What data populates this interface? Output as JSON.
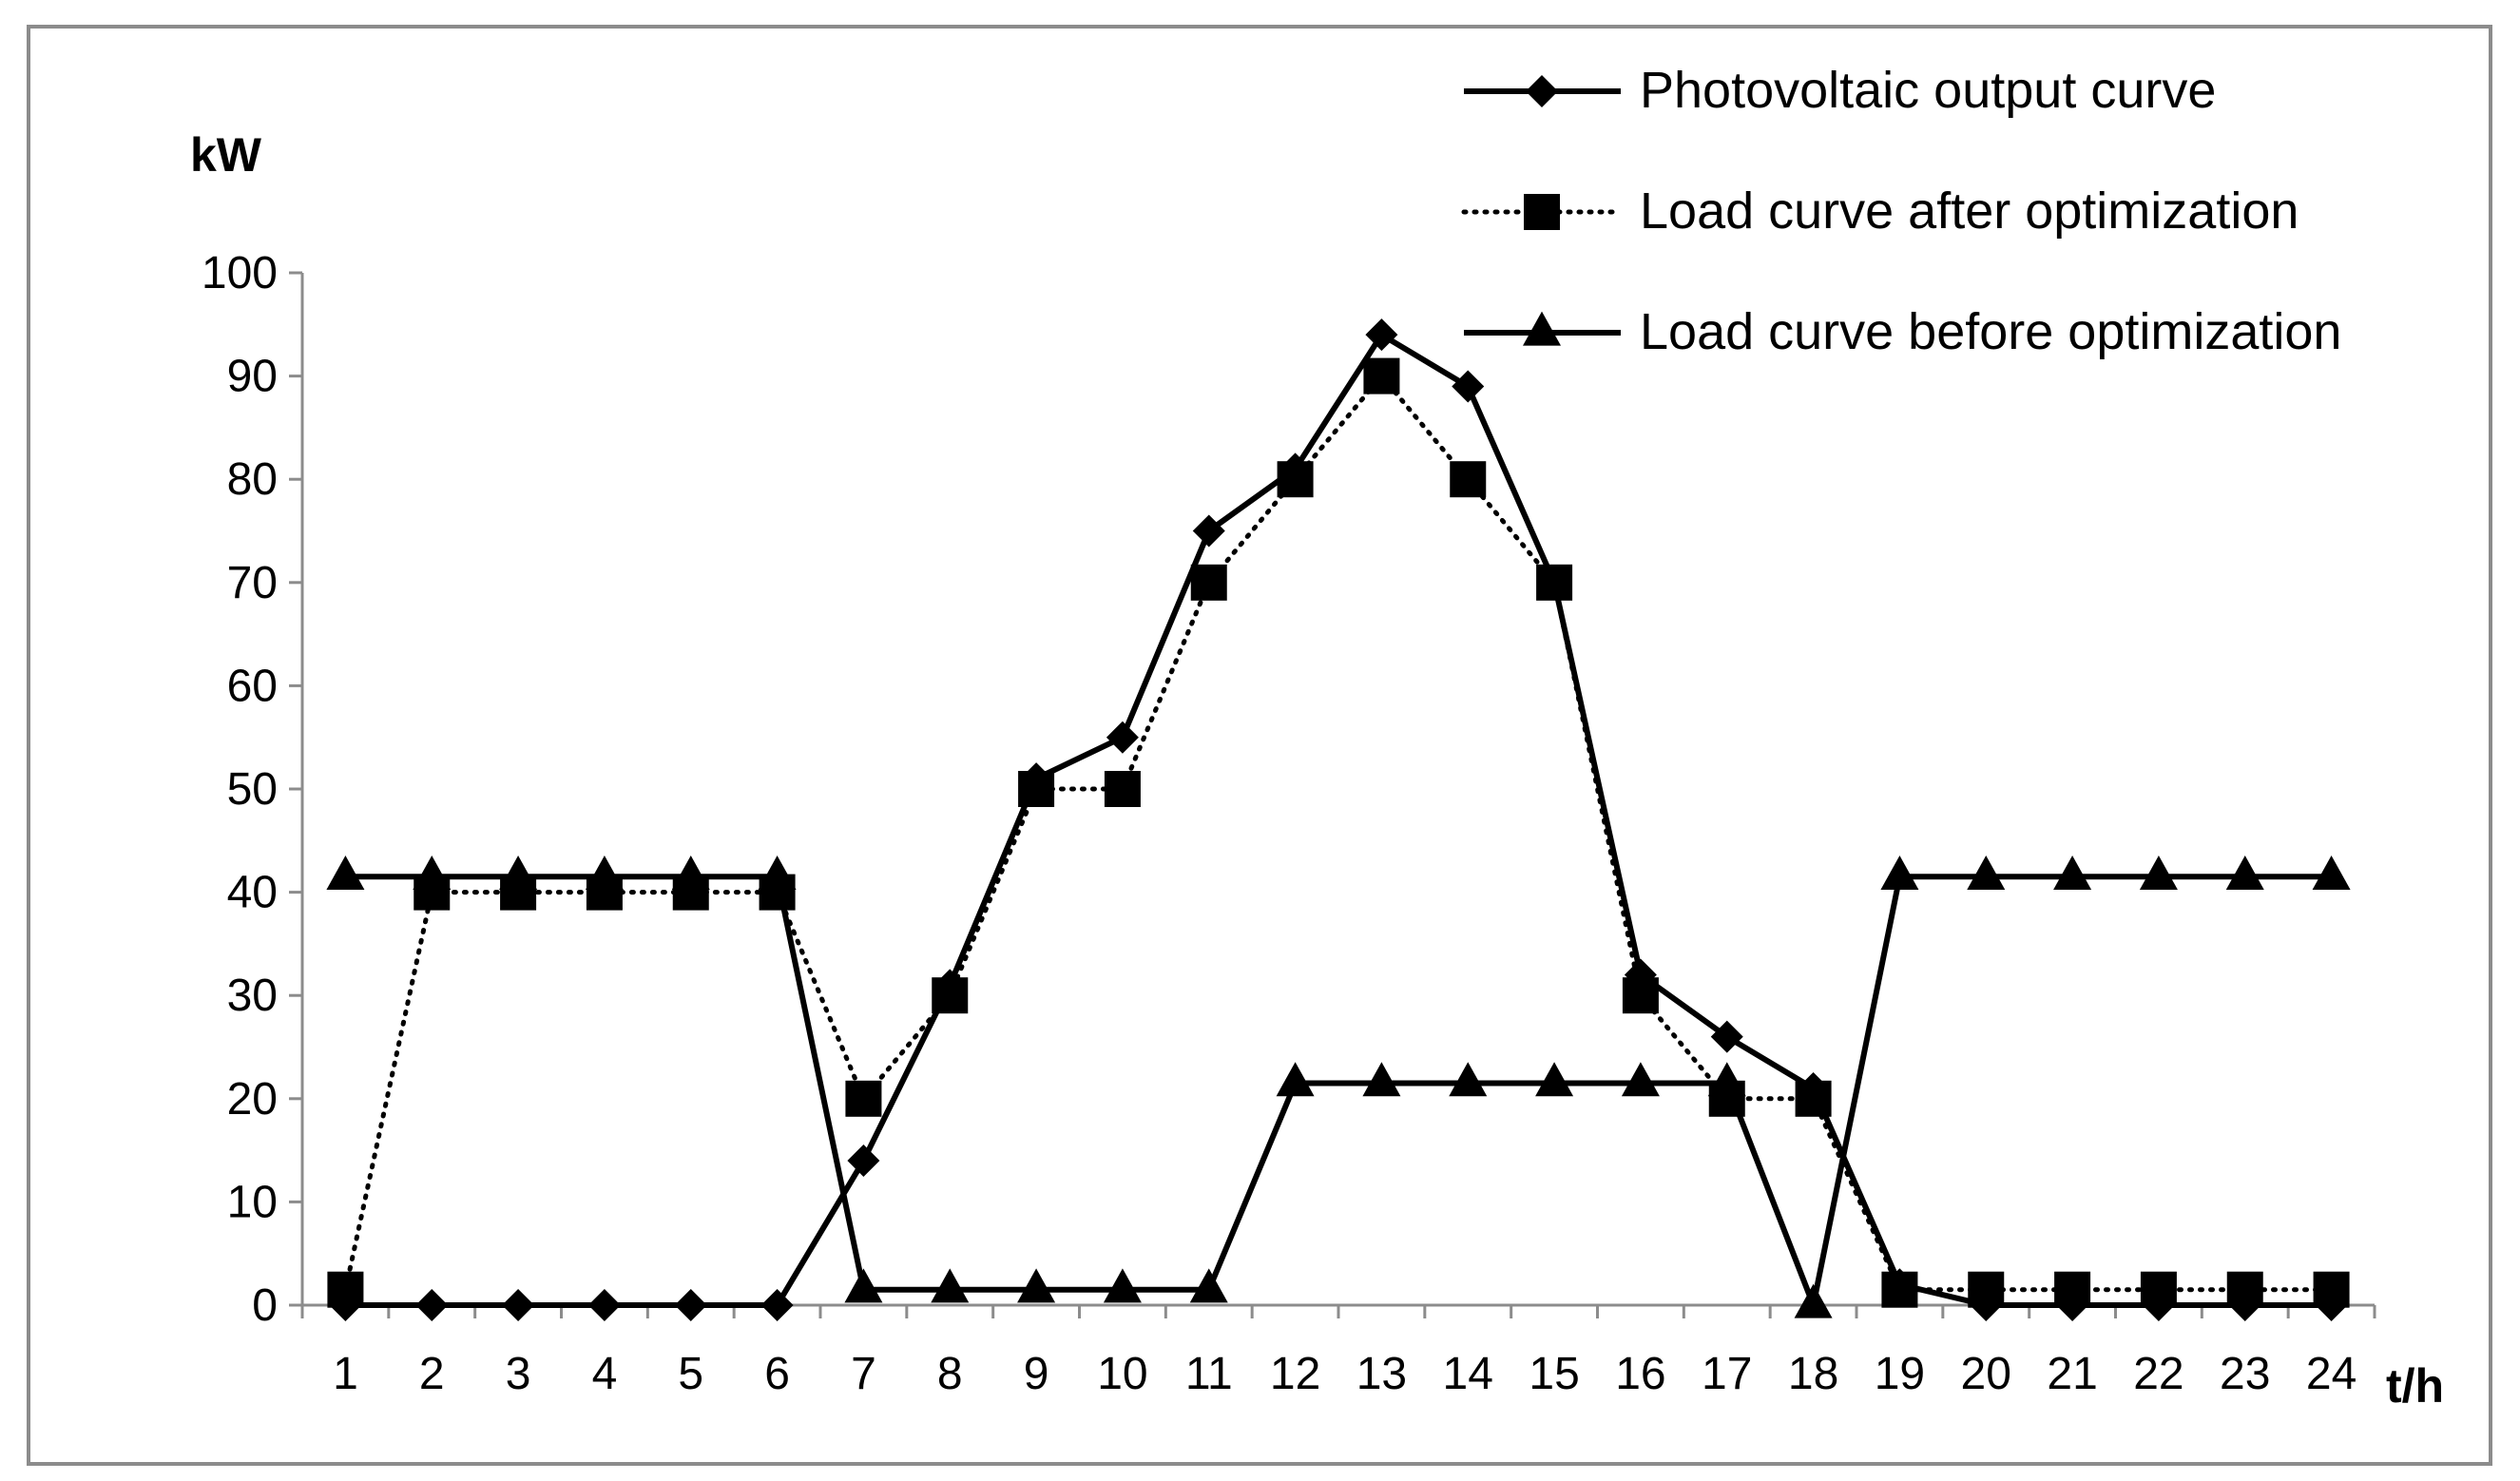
{
  "chart_data": {
    "type": "line",
    "ylabel": "kW",
    "xlabel": "t/h",
    "ylim": [
      0,
      100
    ],
    "yticks": [
      0,
      10,
      20,
      30,
      40,
      50,
      60,
      70,
      80,
      90,
      100
    ],
    "categories": [
      "1",
      "2",
      "3",
      "4",
      "5",
      "6",
      "7",
      "8",
      "9",
      "10",
      "11",
      "12",
      "13",
      "14",
      "15",
      "16",
      "17",
      "18",
      "19",
      "20",
      "21",
      "22",
      "23",
      "24"
    ],
    "grid": false,
    "legend_position": "top-right",
    "series": [
      {
        "name": "Photovoltaic output curve",
        "marker": "diamond",
        "line_style": "solid",
        "color": "#000000",
        "values": [
          0,
          0,
          0,
          0,
          0,
          0,
          14,
          31,
          51,
          55,
          75,
          81,
          94,
          89,
          70,
          32,
          26,
          21,
          2,
          0,
          0,
          0,
          0,
          0
        ]
      },
      {
        "name": "Load curve after optimization",
        "marker": "square",
        "line_style": "dotted",
        "color": "#000000",
        "values": [
          1.5,
          40,
          40,
          40,
          40,
          40,
          20,
          30,
          50,
          50,
          70,
          80,
          90,
          80,
          70,
          30,
          20,
          20,
          1.5,
          1.5,
          1.5,
          1.5,
          1.5,
          1.5
        ]
      },
      {
        "name": "Load curve before optimization",
        "marker": "triangle",
        "line_style": "solid",
        "color": "#000000",
        "values": [
          41.5,
          41.5,
          41.5,
          41.5,
          41.5,
          41.5,
          1.5,
          1.5,
          1.5,
          1.5,
          1.5,
          21.5,
          21.5,
          21.5,
          21.5,
          21.5,
          21.5,
          0,
          41.5,
          41.5,
          41.5,
          41.5,
          41.5,
          41.5
        ]
      }
    ]
  }
}
